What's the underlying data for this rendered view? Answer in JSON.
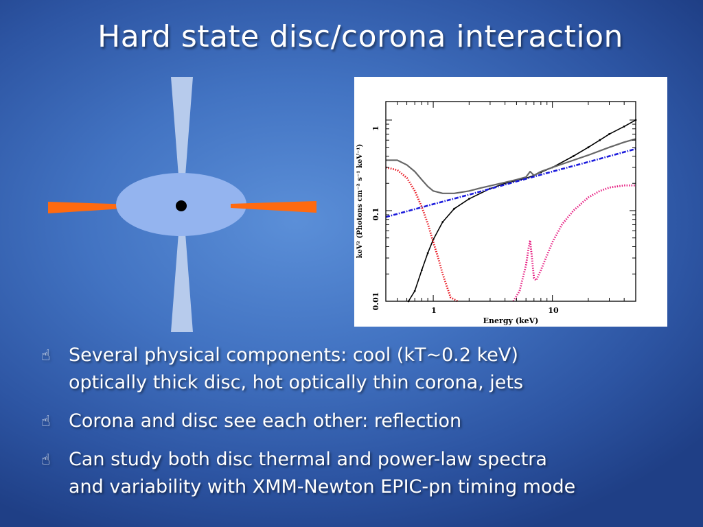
{
  "slide": {
    "title": "Hard state disc/corona interaction"
  },
  "colors": {
    "background": "#4273c2",
    "jet": "#b7cbec",
    "disc": "#94b4ef",
    "disc_jet": "#ff6a10",
    "core": "#000000"
  },
  "diagram": {
    "icons": [
      "jet-cone-icon",
      "disc-ellipse-icon",
      "black-hole-dot-icon"
    ]
  },
  "chart_data": {
    "type": "line",
    "xlabel": "Energy (keV)",
    "ylabel": "keV² (Photons cm⁻² s⁻¹ keV⁻¹)",
    "x_scale": "log",
    "y_scale": "log",
    "xlim": [
      0.4,
      50
    ],
    "ylim": [
      0.01,
      1.6
    ],
    "x_tick_labels": [
      "1",
      "10"
    ],
    "y_tick_labels": [
      "0.01",
      "0.1",
      "1"
    ],
    "series": [
      {
        "color": "#000000",
        "style": "dots",
        "x": [
          0.62,
          0.7,
          0.8,
          0.9,
          1.0,
          1.2,
          1.5,
          2,
          3,
          4,
          5,
          6,
          7,
          8,
          10,
          15,
          20,
          25,
          30,
          40,
          50
        ],
        "y": [
          0.008,
          0.013,
          0.022,
          0.034,
          0.048,
          0.075,
          0.105,
          0.135,
          0.175,
          0.2,
          0.215,
          0.228,
          0.245,
          0.265,
          0.3,
          0.4,
          0.5,
          0.6,
          0.7,
          0.85,
          1.0
        ]
      },
      {
        "color": "#666666",
        "style": "solid",
        "x": [
          0.4,
          0.5,
          0.6,
          0.7,
          0.8,
          0.9,
          1.0,
          1.2,
          1.5,
          2,
          2.5,
          3,
          4,
          5,
          6,
          6.5,
          7,
          8,
          10,
          15,
          20,
          30,
          40,
          50
        ],
        "y": [
          0.36,
          0.36,
          0.32,
          0.27,
          0.22,
          0.185,
          0.165,
          0.155,
          0.155,
          0.165,
          0.178,
          0.188,
          0.205,
          0.22,
          0.235,
          0.27,
          0.245,
          0.27,
          0.3,
          0.36,
          0.41,
          0.5,
          0.57,
          0.62
        ]
      },
      {
        "color": "#1a1adc",
        "style": "dash-dot",
        "x": [
          0.4,
          1,
          2,
          5,
          10,
          20,
          50
        ],
        "y": [
          0.085,
          0.118,
          0.15,
          0.21,
          0.27,
          0.345,
          0.48
        ]
      },
      {
        "color": "#e8141e",
        "style": "dotted",
        "x": [
          0.4,
          0.5,
          0.6,
          0.7,
          0.8,
          0.9,
          1.0,
          1.1,
          1.2,
          1.4,
          1.6
        ],
        "y": [
          0.3,
          0.28,
          0.23,
          0.165,
          0.11,
          0.072,
          0.045,
          0.03,
          0.02,
          0.011,
          0.008
        ]
      },
      {
        "color": "#e6197f",
        "style": "dotted",
        "x": [
          4.7,
          5.3,
          6.0,
          6.3,
          6.5,
          6.7,
          7.0,
          7.3,
          8,
          9,
          10,
          12,
          15,
          20,
          25,
          30,
          40,
          50
        ],
        "y": [
          0.008,
          0.013,
          0.025,
          0.038,
          0.047,
          0.032,
          0.018,
          0.017,
          0.022,
          0.032,
          0.045,
          0.07,
          0.1,
          0.14,
          0.165,
          0.18,
          0.19,
          0.19
        ]
      }
    ]
  },
  "bullets": [
    {
      "icon": "pointing-hand-icon",
      "glyph": "☝",
      "line1": "Several physical components: cool (kT~0.2 keV)",
      "line2": "optically thick disc, hot optically thin corona, jets"
    },
    {
      "icon": "pointing-hand-icon",
      "glyph": "☝",
      "line1": "Corona and disc see each other: reflection"
    },
    {
      "icon": "pointing-hand-icon",
      "glyph": "☝",
      "line1": "Can study both disc thermal and power-law spectra",
      "line2": "and variability with XMM-Newton EPIC-pn timing mode"
    }
  ]
}
